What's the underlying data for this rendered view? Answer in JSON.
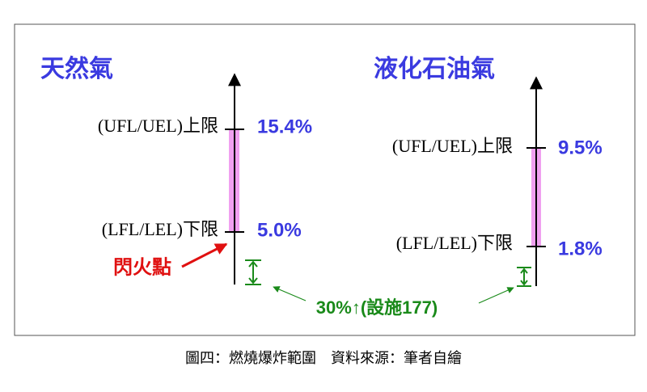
{
  "panels": [
    {
      "title": "天然氣",
      "upper_label": "(UFL/UEL)上限",
      "upper_value": "15.4%",
      "lower_label": "(LFL/LEL)下限",
      "lower_value": "5.0%"
    },
    {
      "title": "液化石油氣",
      "upper_label": "(UFL/UEL)上限",
      "upper_value": "9.5%",
      "lower_label": "(LFL/LEL)下限",
      "lower_value": "1.8%"
    }
  ],
  "flash_point_label": "閃火點",
  "flash_note": "30%↑(設施177)",
  "caption": "圖四：燃燒爆炸範圍　資料來源：筆者自繪"
}
